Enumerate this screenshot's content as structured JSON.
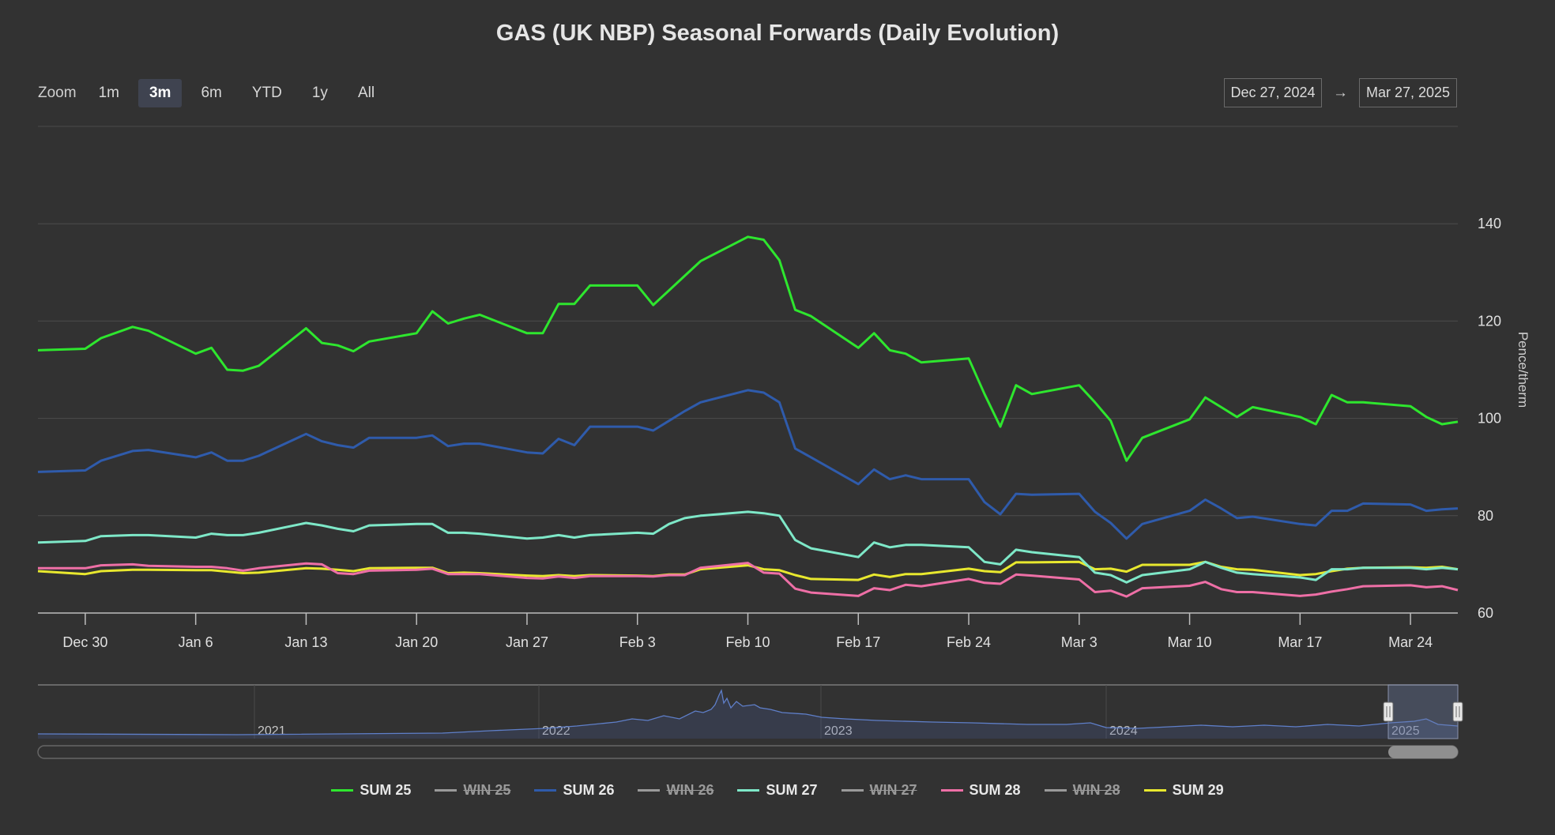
{
  "title": "GAS (UK NBP) Seasonal Forwards (Daily Evolution)",
  "zoom": {
    "label": "Zoom",
    "buttons": [
      "1m",
      "3m",
      "6m",
      "YTD",
      "1y",
      "All"
    ],
    "active": "3m"
  },
  "range": {
    "from": "Dec 27, 2024",
    "arrow": "→",
    "to": "Mar 27, 2025"
  },
  "navigator": {
    "years": [
      "2021",
      "2022",
      "2023",
      "2024",
      "2025"
    ]
  },
  "legend": [
    {
      "name": "SUM 25",
      "color": "#2ee62e",
      "visible": true
    },
    {
      "name": "WIN 25",
      "color": "#9a9a9a",
      "visible": false
    },
    {
      "name": "SUM 26",
      "color": "#2f5bab",
      "visible": true
    },
    {
      "name": "WIN 26",
      "color": "#9a9a9a",
      "visible": false
    },
    {
      "name": "SUM 27",
      "color": "#7ee8c8",
      "visible": true
    },
    {
      "name": "WIN 27",
      "color": "#9a9a9a",
      "visible": false
    },
    {
      "name": "SUM 28",
      "color": "#ee6fa6",
      "visible": true
    },
    {
      "name": "WIN 28",
      "color": "#9a9a9a",
      "visible": false
    },
    {
      "name": "SUM 29",
      "color": "#e8e82e",
      "visible": true
    }
  ],
  "chart_data": {
    "type": "line",
    "title": "GAS (UK NBP) Seasonal Forwards (Daily Evolution)",
    "xlabel": "",
    "ylabel": "Pence/therm",
    "ylim": [
      60,
      160
    ],
    "yticks": [
      "60",
      "80",
      "100",
      "120",
      "140"
    ],
    "xticks": [
      "Dec 30",
      "Jan 6",
      "Jan 13",
      "Jan 20",
      "Jan 27",
      "Feb 3",
      "Feb 10",
      "Feb 17",
      "Feb 24",
      "Mar 3",
      "Mar 10",
      "Mar 17",
      "Mar 24"
    ],
    "legend_position": "bottom",
    "grid": true,
    "x": [
      "2024-12-27",
      "2024-12-30",
      "2024-12-31",
      "2025-01-02",
      "2025-01-03",
      "2025-01-06",
      "2025-01-07",
      "2025-01-08",
      "2025-01-09",
      "2025-01-10",
      "2025-01-13",
      "2025-01-14",
      "2025-01-15",
      "2025-01-16",
      "2025-01-17",
      "2025-01-20",
      "2025-01-21",
      "2025-01-22",
      "2025-01-23",
      "2025-01-24",
      "2025-01-27",
      "2025-01-28",
      "2025-01-29",
      "2025-01-30",
      "2025-01-31",
      "2025-02-03",
      "2025-02-04",
      "2025-02-05",
      "2025-02-06",
      "2025-02-07",
      "2025-02-10",
      "2025-02-11",
      "2025-02-12",
      "2025-02-13",
      "2025-02-14",
      "2025-02-17",
      "2025-02-18",
      "2025-02-19",
      "2025-02-20",
      "2025-02-21",
      "2025-02-24",
      "2025-02-25",
      "2025-02-26",
      "2025-02-27",
      "2025-02-28",
      "2025-03-03",
      "2025-03-04",
      "2025-03-05",
      "2025-03-06",
      "2025-03-07",
      "2025-03-10",
      "2025-03-11",
      "2025-03-12",
      "2025-03-13",
      "2025-03-14",
      "2025-03-17",
      "2025-03-18",
      "2025-03-19",
      "2025-03-20",
      "2025-03-21",
      "2025-03-24",
      "2025-03-25",
      "2025-03-26",
      "2025-03-27"
    ],
    "series": [
      {
        "name": "SUM 25",
        "color": "#2ee62e",
        "values": [
          114,
          114.3,
          116.5,
          118.8,
          118,
          113.3,
          114.5,
          110,
          109.8,
          110.8,
          118.5,
          115.5,
          115,
          113.8,
          115.8,
          117.5,
          122,
          119.5,
          120.5,
          121.3,
          117.5,
          117.5,
          123.5,
          123.5,
          127.3,
          127.3,
          123.3,
          126.3,
          129.3,
          132.3,
          137.3,
          136.7,
          132.5,
          122.3,
          121,
          114.5,
          117.5,
          114,
          113.3,
          111.5,
          112.3,
          105,
          98.3,
          106.8,
          105,
          106.8,
          103.3,
          99.5,
          91.3,
          96,
          99.8,
          104.3,
          102.3,
          100.3,
          102.3,
          100.3,
          98.8,
          104.8,
          103.3,
          103.3,
          102.5,
          100.3,
          98.8,
          99.3
        ]
      },
      {
        "name": "SUM 26",
        "color": "#2f5bab",
        "values": [
          89,
          89.3,
          91.3,
          93.3,
          93.5,
          92,
          93,
          91.3,
          91.3,
          92.3,
          96.8,
          95.3,
          94.5,
          94,
          96,
          96,
          96.5,
          94.3,
          94.8,
          94.8,
          93,
          92.8,
          95.8,
          94.5,
          98.3,
          98.3,
          97.5,
          99.5,
          101.5,
          103.3,
          105.8,
          105.3,
          103.3,
          93.8,
          92,
          86.5,
          89.5,
          87.5,
          88.3,
          87.5,
          87.5,
          82.8,
          80.3,
          84.5,
          84.3,
          84.5,
          80.8,
          78.5,
          75.3,
          78.3,
          81,
          83.3,
          81.5,
          79.5,
          79.8,
          78.3,
          78,
          81,
          81,
          82.5,
          82.3,
          81,
          81.3,
          81.5
        ]
      },
      {
        "name": "SUM 27",
        "color": "#7ee8c8",
        "values": [
          74.5,
          74.8,
          75.8,
          76,
          76,
          75.5,
          76.3,
          76,
          76,
          76.5,
          78.5,
          78,
          77.3,
          76.8,
          78,
          78.3,
          78.3,
          76.5,
          76.5,
          76.3,
          75.3,
          75.5,
          76,
          75.5,
          76,
          76.5,
          76.3,
          78.3,
          79.5,
          80,
          80.8,
          80.5,
          80,
          75,
          73.3,
          71.5,
          74.5,
          73.5,
          74,
          74,
          73.5,
          70.5,
          70,
          73,
          72.5,
          71.5,
          68.3,
          67.8,
          66.3,
          67.8,
          69,
          70.5,
          69.3,
          68.3,
          68,
          67.3,
          66.8,
          69,
          69,
          69.3,
          69.3,
          69,
          69.3,
          69
        ]
      },
      {
        "name": "SUM 28",
        "color": "#ee6fa6",
        "values": [
          69.2,
          69.2,
          69.8,
          70,
          69.7,
          69.5,
          69.5,
          69.2,
          68.7,
          69.2,
          70.2,
          70,
          68.2,
          68,
          68.7,
          68.9,
          69.1,
          68,
          68,
          68,
          67.2,
          67.1,
          67.5,
          67.2,
          67.6,
          67.6,
          67.5,
          67.8,
          67.8,
          69.3,
          70.3,
          68.3,
          68.1,
          65,
          64.2,
          63.5,
          65.1,
          64.7,
          65.8,
          65.5,
          67,
          66.2,
          66,
          67.9,
          67.7,
          66.9,
          64.3,
          64.6,
          63.4,
          65.1,
          65.6,
          66.4,
          64.9,
          64.3,
          64.3,
          63.5,
          63.8,
          64.4,
          64.9,
          65.5,
          65.7,
          65.3,
          65.5,
          64.7
        ]
      },
      {
        "name": "SUM 29",
        "color": "#e8e82e",
        "values": [
          68.6,
          68,
          68.6,
          68.9,
          68.9,
          68.8,
          68.8,
          68.5,
          68.2,
          68.3,
          69.2,
          69.1,
          68.9,
          68.6,
          69.2,
          69.3,
          69.3,
          68.2,
          68.3,
          68.2,
          67.7,
          67.6,
          67.8,
          67.6,
          67.8,
          67.7,
          67.6,
          67.9,
          67.9,
          69,
          69.8,
          69,
          68.8,
          67.8,
          67,
          66.8,
          67.9,
          67.4,
          68,
          68,
          69.1,
          68.6,
          68.4,
          70.4,
          70.4,
          70.5,
          69,
          69.1,
          68.5,
          69.9,
          69.9,
          70.5,
          69.5,
          69,
          68.9,
          67.8,
          68,
          68.6,
          69.1,
          69.3,
          69.4,
          69.3,
          69.5,
          69
        ]
      }
    ]
  }
}
